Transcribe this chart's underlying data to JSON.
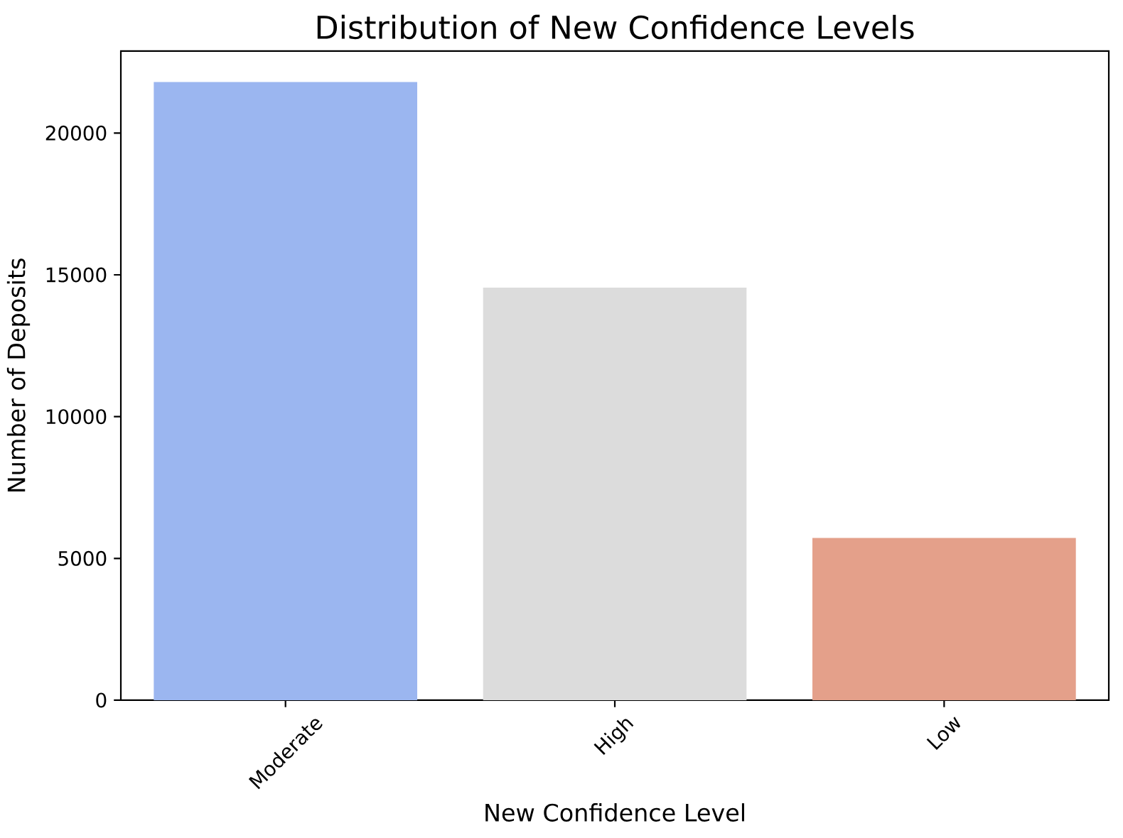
{
  "chart_data": {
    "type": "bar",
    "title": "Distribution of New Confidence Levels",
    "xlabel": "New Confidence Level",
    "ylabel": "Number of Deposits",
    "categories": [
      "Moderate",
      "High",
      "Low"
    ],
    "values": [
      21800,
      14550,
      5720
    ],
    "colors": [
      "#9bb6f0",
      "#dcdcdc",
      "#e4a08a"
    ],
    "ylim": [
      0,
      22890
    ],
    "yticks": [
      0,
      5000,
      10000,
      15000,
      20000
    ]
  }
}
